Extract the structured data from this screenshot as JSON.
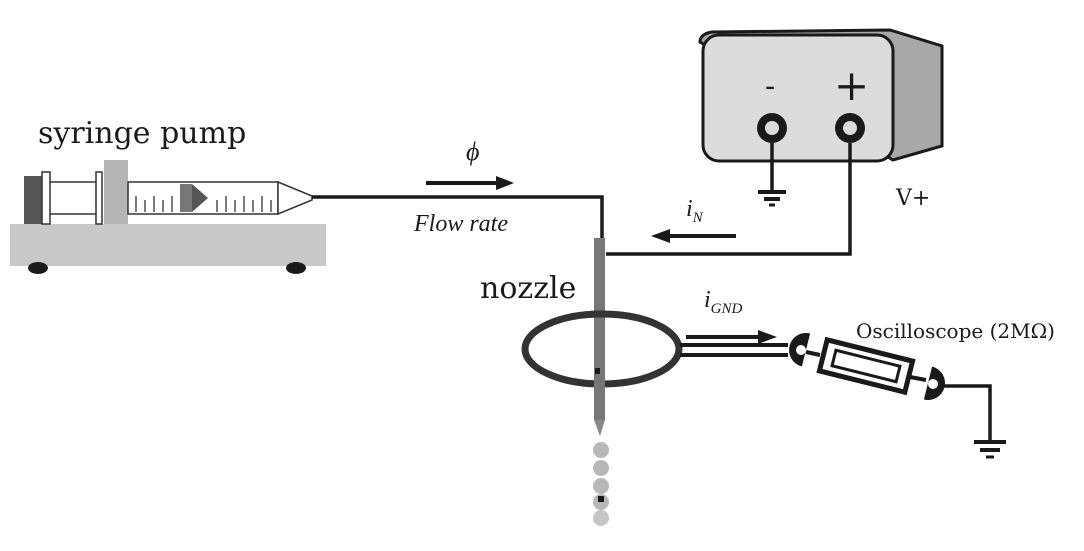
{
  "labels": {
    "syringe_pump": "syringe pump",
    "phi": "ϕ",
    "flow_rate": "Flow rate",
    "i_n_main": "i",
    "i_n_sub": "N",
    "i_gnd_main": "i",
    "i_gnd_sub": "GND",
    "nozzle": "nozzle",
    "v_plus": "V+",
    "oscilloscope": "Oscilloscope (2MΩ)",
    "minus": "-",
    "plus": "+"
  },
  "colors": {
    "stroke": "#1a1a1a",
    "supply_body": "#dcdcdc",
    "supply_side": "#a8a8a8",
    "pump_base": "#c8c8c8",
    "nozzle": "#777777",
    "droplet": "#b8b8b8"
  }
}
